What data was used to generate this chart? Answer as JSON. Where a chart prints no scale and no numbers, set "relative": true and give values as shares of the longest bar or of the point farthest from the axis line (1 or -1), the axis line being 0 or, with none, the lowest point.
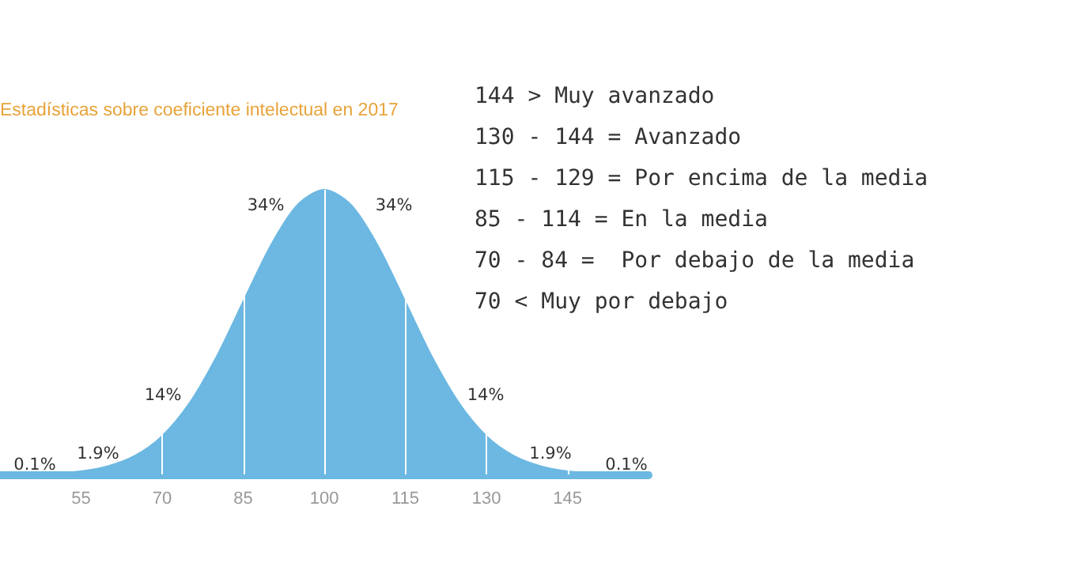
{
  "chart_data": {
    "type": "area",
    "title": "Estadísticas sobre coeficiente intelectual en 2017",
    "relative": true,
    "x": [
      40,
      45,
      50,
      55,
      60,
      65,
      70,
      75,
      80,
      85,
      90,
      95,
      100,
      105,
      110,
      115,
      120,
      125,
      130,
      135,
      140,
      145,
      150,
      155,
      160
    ],
    "series": [
      {
        "color": "#6cb8e2",
        "values": [
          0,
          0.001,
          0.004,
          0.011,
          0.029,
          0.066,
          0.135,
          0.249,
          0.411,
          0.607,
          0.801,
          0.946,
          1,
          0.946,
          0.801,
          0.607,
          0.411,
          0.249,
          0.135,
          0.066,
          0.029,
          0.011,
          0.004,
          0.001,
          0
        ]
      }
    ],
    "xlim": [
      40,
      160
    ],
    "xticks": [
      55,
      70,
      85,
      100,
      115,
      130,
      145
    ],
    "grid": false,
    "marker": "none",
    "ref_lines": [
      {
        "axis": "x",
        "value": 70,
        "color": "#ffffff"
      },
      {
        "axis": "x",
        "value": 85,
        "color": "#ffffff"
      },
      {
        "axis": "x",
        "value": 100,
        "color": "#ffffff"
      },
      {
        "axis": "x",
        "value": 115,
        "color": "#ffffff"
      },
      {
        "axis": "x",
        "value": 130,
        "color": "#ffffff"
      },
      {
        "axis": "x",
        "value": 145,
        "color": "#ffffff"
      }
    ],
    "annotations": [
      "34%",
      "34%",
      "14%",
      "14%",
      "1.9%",
      "1.9%",
      "0.1%",
      "0.1%",
      "144 > Muy avanzado",
      "130 - 144 = Avanzado",
      "115 - 129 = Por encima de la media",
      "85 - 114 = En la media",
      "70 - 84 =  Por debajo de la media",
      "70 < Muy por debajo"
    ]
  }
}
